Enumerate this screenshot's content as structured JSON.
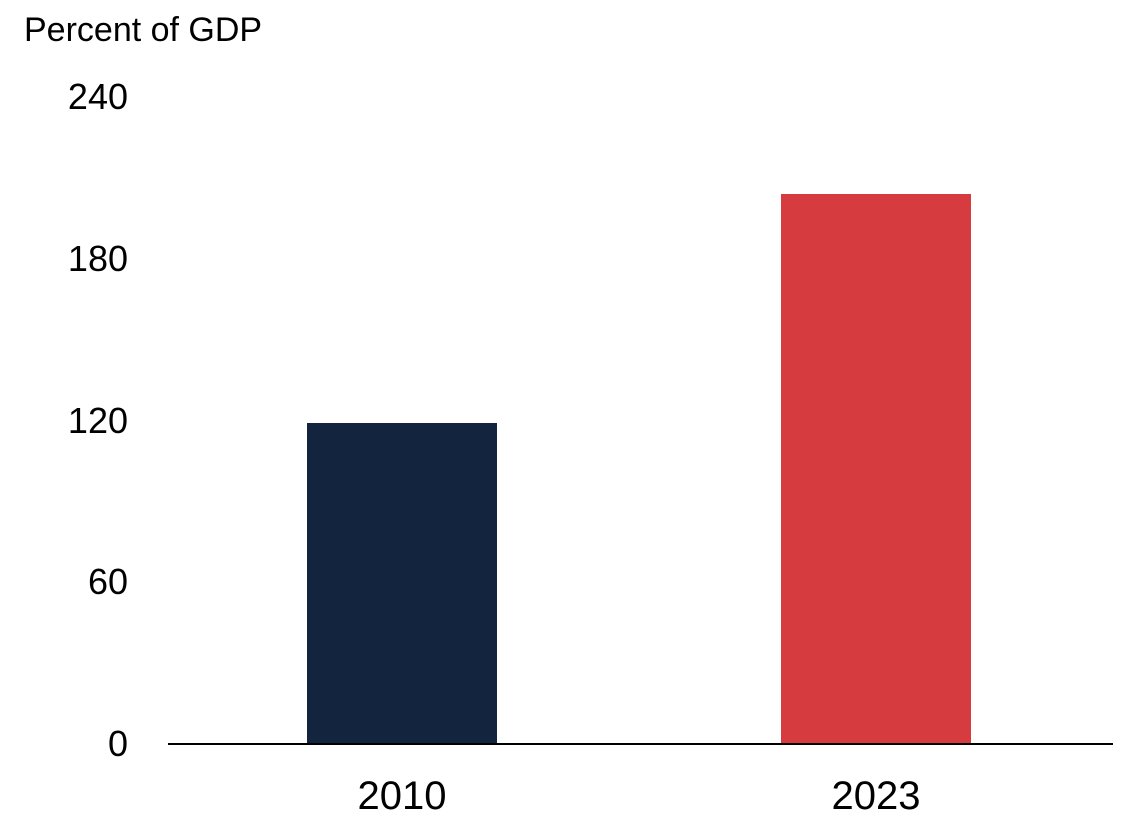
{
  "chart_data": {
    "type": "bar",
    "title": "Percent of GDP",
    "categories": [
      "2010",
      "2023"
    ],
    "values": [
      119,
      204
    ],
    "bar_colors": [
      "#12243e",
      "#d53b3f"
    ],
    "xlabel": "",
    "ylabel": "Percent of GDP",
    "ylim": [
      0,
      240
    ],
    "yticks": [
      0,
      60,
      120,
      180,
      240
    ],
    "grid": false,
    "legend": "none",
    "axis_color": "#000000",
    "text_color": "#000000",
    "background_color": "#ffffff"
  }
}
